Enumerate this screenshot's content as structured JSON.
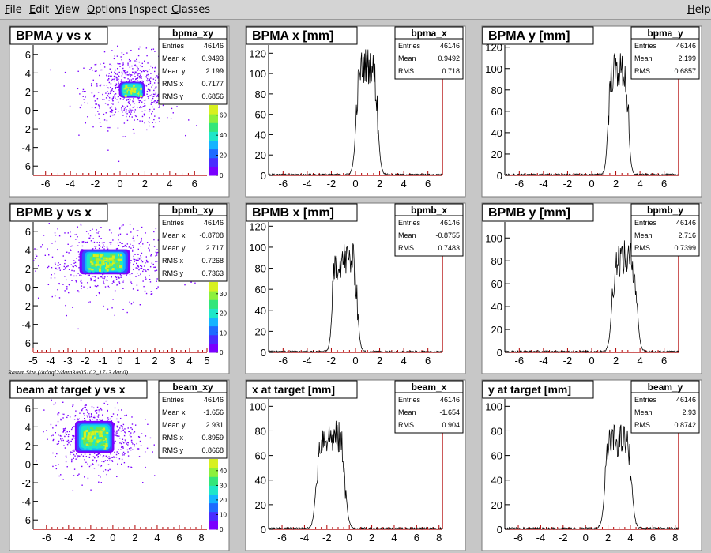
{
  "menubar": {
    "items": [
      {
        "label": "File",
        "ul": "F",
        "rest": "ile"
      },
      {
        "label": "Edit",
        "ul": "E",
        "rest": "dit"
      },
      {
        "label": "View",
        "ul": "V",
        "rest": "iew"
      },
      {
        "label": "Options",
        "ul": "O",
        "rest": "ptions"
      },
      {
        "label": "Inspect",
        "ul": "I",
        "rest": "nspect"
      },
      {
        "label": "Classes",
        "ul": "C",
        "rest": "lasses"
      }
    ],
    "help": {
      "label": "Help",
      "ul": "H",
      "rest": "elp"
    }
  },
  "raster_label": "Raster Size (/adaql2/data3/e05102_1713.dat.0)",
  "colors": {
    "accent": "#b00000",
    "background": "#c7c7c7",
    "line": "#000000"
  },
  "pads": [
    {
      "title": "BPMA y vs x",
      "stats_name": "bpma_xy",
      "stats": [
        [
          "Entries",
          "46146"
        ],
        [
          "Mean x",
          "0.9493"
        ],
        [
          "Mean y",
          "2.199"
        ],
        [
          "RMS x",
          "0.7177"
        ],
        [
          "RMS y",
          "0.6856"
        ]
      ],
      "chart_data": {
        "type": "heatmap",
        "xticks": [
          "-6",
          "-4",
          "-2",
          "0",
          "2",
          "4",
          "6"
        ],
        "xlim": [
          -7,
          7
        ],
        "yticks": [
          "6",
          "4",
          "2",
          "0",
          "-2",
          "-4",
          "-6"
        ],
        "ylim": [
          -7,
          7
        ],
        "center": [
          0.9493,
          2.199
        ],
        "halfwidth": [
          0.85,
          0.7
        ],
        "colorbar_ticks": [
          "60",
          "40",
          "20",
          "0"
        ],
        "colorbar_max": 70
      }
    },
    {
      "title": "BPMA x [mm]",
      "stats_name": "bpma_x",
      "stats": [
        [
          "Entries",
          "46146"
        ],
        [
          "Mean",
          "0.9492"
        ],
        [
          "RMS",
          "0.718"
        ]
      ],
      "chart_data": {
        "type": "line",
        "xticks": [
          "-6",
          "-4",
          "-2",
          "0",
          "2",
          "4",
          "6"
        ],
        "xlim": [
          -7.2,
          7.2
        ],
        "yticks": [
          "0",
          "20",
          "40",
          "60",
          "80",
          "100",
          "120"
        ],
        "ylim": [
          0,
          128
        ],
        "center": 0.9492,
        "halfwidth": 0.9,
        "edge": 0.35,
        "peak": 108,
        "noise": 18
      }
    },
    {
      "title": "BPMA y [mm]",
      "stats_name": "bpma_y",
      "stats": [
        [
          "Entries",
          "46146"
        ],
        [
          "Mean",
          "2.199"
        ],
        [
          "RMS",
          "0.6857"
        ]
      ],
      "chart_data": {
        "type": "line",
        "xticks": [
          "-6",
          "-4",
          "-2",
          "0",
          "2",
          "4",
          "6"
        ],
        "xlim": [
          -7.2,
          7.2
        ],
        "yticks": [
          "0",
          "20",
          "40",
          "60",
          "80",
          "100",
          "120"
        ],
        "ylim": [
          0,
          122
        ],
        "center": 2.199,
        "halfwidth": 0.85,
        "edge": 0.3,
        "peak": 98,
        "noise": 18
      }
    },
    {
      "title": "BPMB y vs x",
      "stats_name": "bpmb_xy",
      "stats": [
        [
          "Entries",
          "46146"
        ],
        [
          "Mean x",
          "-0.8708"
        ],
        [
          "Mean y",
          "2.717"
        ],
        [
          "RMS x",
          "0.7268"
        ],
        [
          "RMS y",
          "0.7363"
        ]
      ],
      "chart_data": {
        "type": "heatmap",
        "xticks": [
          "-5",
          "-4",
          "-3",
          "-2",
          "-1",
          "0",
          "1",
          "2",
          "3",
          "4",
          "5"
        ],
        "xlim": [
          -5,
          5
        ],
        "yticks": [
          "6",
          "4",
          "2",
          "0",
          "-2",
          "-4",
          "-6"
        ],
        "ylim": [
          -7,
          7
        ],
        "center": [
          -0.8708,
          2.717
        ],
        "halfwidth": [
          1.2,
          1.1
        ],
        "colorbar_ticks": [
          "30",
          "20",
          "10",
          "0"
        ],
        "colorbar_max": 36
      }
    },
    {
      "title": "BPMB x [mm]",
      "stats_name": "bpmb_x",
      "stats": [
        [
          "Entries",
          "46146"
        ],
        [
          "Mean",
          "-0.8755"
        ],
        [
          "RMS",
          "0.7483"
        ]
      ],
      "chart_data": {
        "type": "line",
        "xticks": [
          "-6",
          "-4",
          "-2",
          "0",
          "2",
          "4",
          "6"
        ],
        "xlim": [
          -7.2,
          7.2
        ],
        "yticks": [
          "0",
          "20",
          "40",
          "60",
          "80",
          "100",
          "120"
        ],
        "ylim": [
          0,
          124
        ],
        "center": -0.8755,
        "halfwidth": 1.05,
        "edge": 0.3,
        "peak": 88,
        "noise": 18
      }
    },
    {
      "title": "BPMB y [mm]",
      "stats_name": "bpmb_y",
      "stats": [
        [
          "Entries",
          "46146"
        ],
        [
          "Mean",
          "2.716"
        ],
        [
          "RMS",
          "0.7399"
        ]
      ],
      "chart_data": {
        "type": "line",
        "xticks": [
          "-6",
          "-4",
          "-2",
          "0",
          "2",
          "4",
          "6"
        ],
        "xlim": [
          -7.2,
          7.2
        ],
        "yticks": [
          "0",
          "20",
          "40",
          "60",
          "80",
          "100"
        ],
        "ylim": [
          0,
          114
        ],
        "center": 2.716,
        "halfwidth": 1.05,
        "edge": 0.35,
        "peak": 82,
        "noise": 16
      }
    },
    {
      "title": "beam at target y vs x",
      "stats_name": "beam_xy",
      "stats": [
        [
          "Entries",
          "46146"
        ],
        [
          "Mean x",
          "-1.656"
        ],
        [
          "Mean y",
          "2.931"
        ],
        [
          "RMS x",
          "0.8959"
        ],
        [
          "RMS y",
          "0.8668"
        ]
      ],
      "chart_data": {
        "type": "heatmap",
        "xticks": [
          "-6",
          "-4",
          "-2",
          "0",
          "2",
          "4",
          "6",
          "8"
        ],
        "xlim": [
          -7.2,
          8.5
        ],
        "yticks": [
          "6",
          "4",
          "2",
          "0",
          "-2",
          "-4",
          "-6"
        ],
        "ylim": [
          -7,
          7
        ],
        "center": [
          -1.656,
          2.931
        ],
        "halfwidth": [
          1.45,
          1.4
        ],
        "colorbar_ticks": [
          "40",
          "30",
          "20",
          "10",
          "0"
        ],
        "colorbar_max": 48
      }
    },
    {
      "title": "x at target [mm]",
      "stats_name": "beam_x",
      "stats": [
        [
          "Entries",
          "46146"
        ],
        [
          "Mean",
          "-1.654"
        ],
        [
          "RMS",
          "0.904"
        ]
      ],
      "chart_data": {
        "type": "line",
        "xticks": [
          "-6",
          "-4",
          "-2",
          "0",
          "2",
          "4",
          "6",
          "8"
        ],
        "xlim": [
          -7.2,
          8.3
        ],
        "yticks": [
          "0",
          "20",
          "40",
          "60",
          "80",
          "100"
        ],
        "ylim": [
          0,
          106
        ],
        "center": -1.654,
        "halfwidth": 1.3,
        "edge": 0.4,
        "peak": 75,
        "noise": 14
      }
    },
    {
      "title": "y at target [mm]",
      "stats_name": "beam_y",
      "stats": [
        [
          "Entries",
          "46146"
        ],
        [
          "Mean",
          "2.93"
        ],
        [
          "RMS",
          "0.8742"
        ]
      ],
      "chart_data": {
        "type": "line",
        "xticks": [
          "-6",
          "-4",
          "-2",
          "0",
          "2",
          "4",
          "6",
          "8"
        ],
        "xlim": [
          -7.2,
          8.3
        ],
        "yticks": [
          "0",
          "20",
          "40",
          "60",
          "80",
          "100"
        ],
        "ylim": [
          0,
          106
        ],
        "center": 2.93,
        "halfwidth": 1.2,
        "edge": 0.4,
        "peak": 72,
        "noise": 14
      }
    }
  ]
}
